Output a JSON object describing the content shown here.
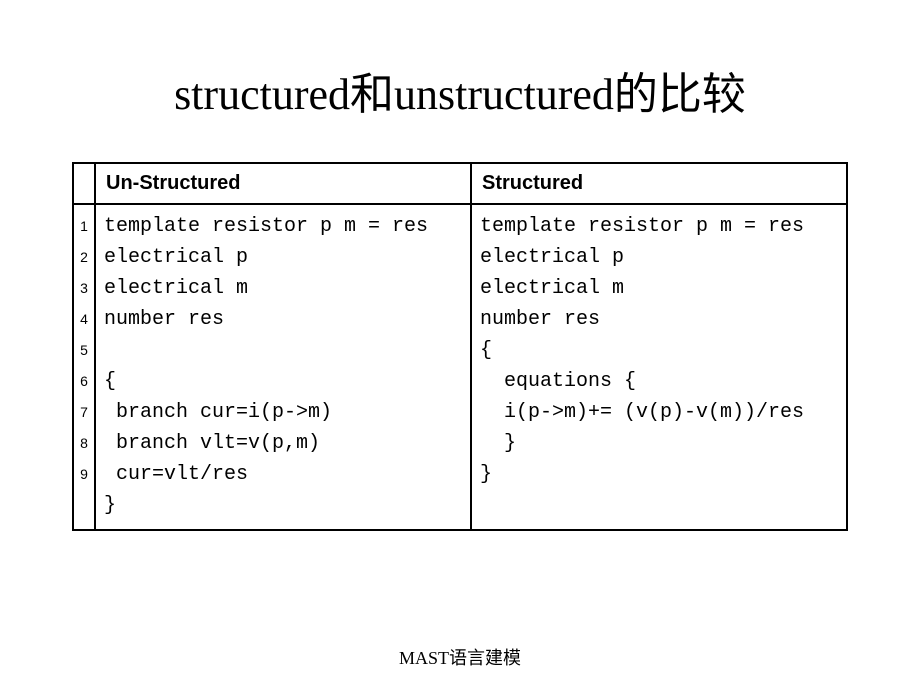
{
  "title": "structured和unstructured的比较",
  "footer": "MAST语言建模",
  "table": {
    "headers": {
      "num": "",
      "col1": "Un-Structured",
      "col2": "Structured"
    },
    "line_numbers": "1\n2\n3\n4\n5\n6\n7\n8\n9",
    "unstructured_code": "template resistor p m = res\nelectrical p\nelectrical m\nnumber res\n\n{\n branch cur=i(p->m)\n branch vlt=v(p,m)\n cur=vlt/res\n}",
    "structured_code": "template resistor p m = res\nelectrical p\nelectrical m\nnumber res\n{\n  equations {\n  i(p->m)+= (v(p)-v(m))/res\n  }\n}"
  },
  "style": {
    "title_fontsize": 44,
    "header_fontsize": 20,
    "code_fontsize": 20,
    "linenum_fontsize": 14,
    "line_height": 31,
    "border_color": "#000000",
    "background": "#ffffff",
    "text_color": "#000000",
    "code_font": "Courier New",
    "header_font": "Arial",
    "title_font": "Times New Roman"
  }
}
